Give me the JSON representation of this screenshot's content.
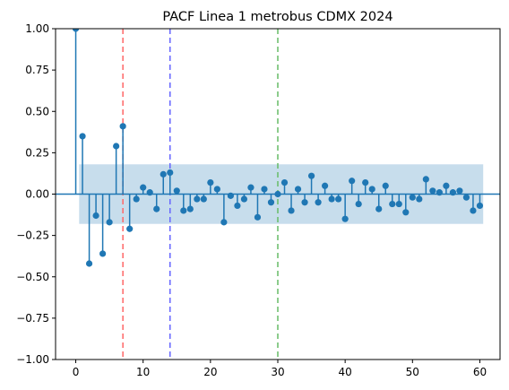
{
  "chart_data": {
    "type": "stem",
    "title": "PACF Linea 1 metrobus CDMX 2024",
    "xlabel": "",
    "ylabel": "",
    "xlim": [
      -3,
      63
    ],
    "ylim": [
      -1.0,
      1.0
    ],
    "xticks": [
      0,
      10,
      20,
      30,
      40,
      50,
      60
    ],
    "yticks": [
      -1.0,
      -0.75,
      -0.5,
      -0.25,
      0.0,
      0.25,
      0.5,
      0.75,
      1.0
    ],
    "xtick_labels": [
      "0",
      "10",
      "20",
      "30",
      "40",
      "50",
      "60"
    ],
    "ytick_labels": [
      "−1.00",
      "−0.75",
      "−0.50",
      "−0.25",
      "0.00",
      "0.25",
      "0.50",
      "0.75",
      "1.00"
    ],
    "confidence_band": [
      -0.18,
      0.18
    ],
    "vertical_lines": [
      {
        "x": 7,
        "color": "#ff6666"
      },
      {
        "x": 14,
        "color": "#6666ff"
      },
      {
        "x": 30,
        "color": "#66bb66"
      }
    ],
    "lags": [
      0,
      1,
      2,
      3,
      4,
      5,
      6,
      7,
      8,
      9,
      10,
      11,
      12,
      13,
      14,
      15,
      16,
      17,
      18,
      19,
      20,
      21,
      22,
      23,
      24,
      25,
      26,
      27,
      28,
      29,
      30,
      31,
      32,
      33,
      34,
      35,
      36,
      37,
      38,
      39,
      40,
      41,
      42,
      43,
      44,
      45,
      46,
      47,
      48,
      49,
      50,
      51,
      52,
      53,
      54,
      55,
      56,
      57,
      58,
      59,
      60
    ],
    "values": [
      1.0,
      0.35,
      -0.42,
      -0.13,
      -0.36,
      -0.17,
      0.29,
      0.41,
      -0.21,
      -0.03,
      0.04,
      0.01,
      -0.09,
      0.12,
      0.13,
      0.02,
      -0.1,
      -0.09,
      -0.03,
      -0.03,
      0.07,
      0.03,
      -0.17,
      -0.01,
      -0.07,
      -0.03,
      0.04,
      -0.14,
      0.03,
      -0.05,
      0.0,
      0.07,
      -0.1,
      0.03,
      -0.05,
      0.11,
      -0.05,
      0.05,
      -0.03,
      -0.03,
      -0.15,
      0.08,
      -0.06,
      0.07,
      0.03,
      -0.09,
      0.05,
      -0.06,
      -0.06,
      -0.11,
      -0.02,
      -0.03,
      0.09,
      0.02,
      0.01,
      0.05,
      0.01,
      0.02,
      -0.02,
      -0.1,
      -0.07
    ],
    "colors": {
      "stem": "#1f77b4",
      "band": "#1f77b4",
      "zero_line": "#1f77b4"
    },
    "grid": false,
    "legend": "none"
  }
}
